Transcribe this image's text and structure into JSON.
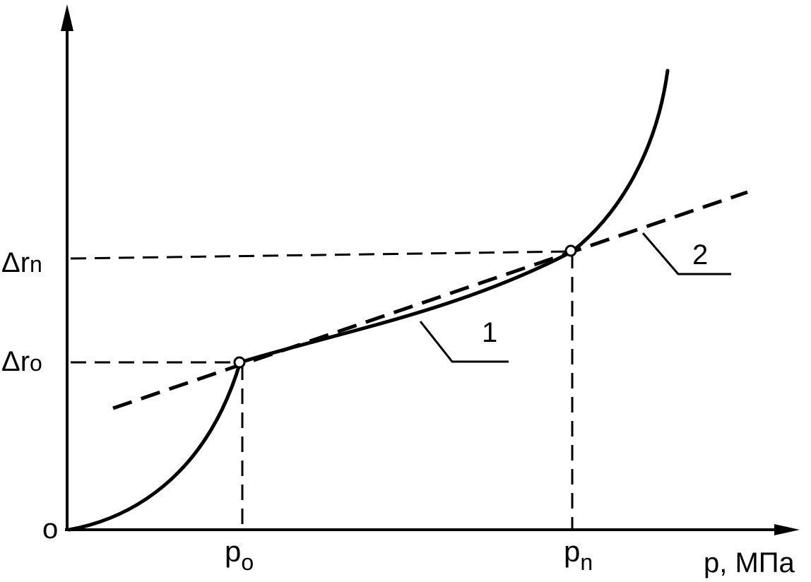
{
  "axes": {
    "origin_label": "o",
    "x_axis_label": "p, МПа",
    "y_axis_label": ""
  },
  "x_ticks": {
    "p0": {
      "base": "p",
      "sub": "o"
    },
    "pn": {
      "base": "p",
      "sub": "n"
    }
  },
  "y_ticks": {
    "dr0": {
      "base": "Δr",
      "sub": "o"
    },
    "drn": {
      "base": "Δr",
      "sub": "n"
    }
  },
  "curve_labels": {
    "curve_1": "1",
    "line_2": "2"
  },
  "colors": {
    "ink": "#000000",
    "background": "#ffffff"
  }
}
